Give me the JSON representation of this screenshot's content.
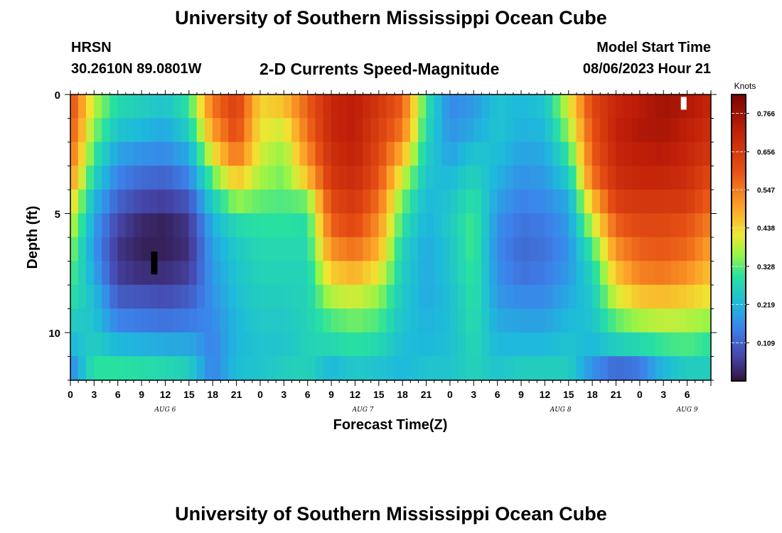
{
  "page": {
    "title": "University of Southern Mississippi Ocean Cube",
    "footer_title": "University of Southern Mississippi Ocean Cube",
    "station": "HRSN",
    "coords": "30.2610N  89.0801W",
    "subtitle": "2-D Currents Speed-Magnitude",
    "model_start_label": "Model Start Time",
    "model_start_value": "08/06/2023 Hour 21"
  },
  "chart_data": {
    "type": "heatmap",
    "title": "2-D Currents Speed-Magnitude",
    "xlabel": "Forecast Time(Z)",
    "ylabel": "Depth (ft)",
    "colorbar_label": "Knots",
    "colorbar_ticks": [
      "0.766",
      "0.656",
      "0.547",
      "0.438",
      "0.328",
      "0.219",
      "0.109"
    ],
    "colorbar_tick_values": [
      0.766,
      0.656,
      0.547,
      0.438,
      0.328,
      0.219,
      0.109
    ],
    "color_range": [
      0.0,
      0.82
    ],
    "x_range_hours": [
      0,
      81
    ],
    "x_tick_labels": [
      "0",
      "3",
      "6",
      "9",
      "12",
      "15",
      "18",
      "21",
      "0",
      "3",
      "6",
      "9",
      "12",
      "15",
      "18",
      "21",
      "0",
      "3",
      "6",
      "9",
      "12",
      "15",
      "18",
      "21",
      "0",
      "3",
      "6"
    ],
    "date_labels": [
      {
        "text": "AUG 6",
        "hour": 12
      },
      {
        "text": "AUG 7",
        "hour": 37
      },
      {
        "text": "AUG 8",
        "hour": 62
      },
      {
        "text": "AUG 9",
        "hour": 78
      }
    ],
    "y_range_ft": [
      0,
      12
    ],
    "y_tick_labels": [
      "0",
      "5",
      "10"
    ],
    "y_tick_values": [
      0,
      5,
      10
    ],
    "depth_levels_ft": [
      0.5,
      1.5,
      2.5,
      3.5,
      4.5,
      5.5,
      6.5,
      7.5,
      8.5,
      9.5,
      10.5,
      11.5
    ],
    "keyframes": [
      {
        "hour": 0,
        "speeds": [
          0.62,
          0.6,
          0.57,
          0.52,
          0.45,
          0.4,
          0.36,
          0.33,
          0.3,
          0.26,
          0.22,
          0.15
        ]
      },
      {
        "hour": 3,
        "speeds": [
          0.38,
          0.35,
          0.31,
          0.27,
          0.22,
          0.19,
          0.18,
          0.2,
          0.23,
          0.24,
          0.26,
          0.3
        ]
      },
      {
        "hour": 6,
        "speeds": [
          0.28,
          0.24,
          0.19,
          0.15,
          0.11,
          0.07,
          0.05,
          0.06,
          0.1,
          0.15,
          0.22,
          0.3
        ]
      },
      {
        "hour": 9,
        "speeds": [
          0.26,
          0.22,
          0.17,
          0.12,
          0.07,
          0.03,
          0.02,
          0.04,
          0.09,
          0.14,
          0.21,
          0.29
        ]
      },
      {
        "hour": 12,
        "speeds": [
          0.24,
          0.2,
          0.16,
          0.11,
          0.06,
          0.02,
          0.02,
          0.04,
          0.08,
          0.13,
          0.2,
          0.28
        ]
      },
      {
        "hour": 15,
        "speeds": [
          0.3,
          0.26,
          0.2,
          0.15,
          0.09,
          0.05,
          0.04,
          0.06,
          0.1,
          0.14,
          0.2,
          0.26
        ]
      },
      {
        "hour": 18,
        "speeds": [
          0.55,
          0.5,
          0.42,
          0.33,
          0.26,
          0.21,
          0.19,
          0.18,
          0.17,
          0.16,
          0.15,
          0.15
        ]
      },
      {
        "hour": 21,
        "speeds": [
          0.64,
          0.62,
          0.56,
          0.46,
          0.36,
          0.28,
          0.25,
          0.24,
          0.23,
          0.22,
          0.22,
          0.23
        ]
      },
      {
        "hour": 24,
        "speeds": [
          0.44,
          0.42,
          0.4,
          0.37,
          0.33,
          0.3,
          0.28,
          0.27,
          0.26,
          0.25,
          0.24,
          0.24
        ]
      },
      {
        "hour": 27,
        "speeds": [
          0.46,
          0.4,
          0.36,
          0.34,
          0.32,
          0.3,
          0.28,
          0.27,
          0.26,
          0.25,
          0.24,
          0.26
        ]
      },
      {
        "hour": 30,
        "speeds": [
          0.58,
          0.56,
          0.52,
          0.46,
          0.34,
          0.29,
          0.28,
          0.27,
          0.27,
          0.27,
          0.27,
          0.27
        ]
      },
      {
        "hour": 33,
        "speeds": [
          0.7,
          0.7,
          0.68,
          0.66,
          0.62,
          0.58,
          0.52,
          0.45,
          0.38,
          0.32,
          0.28,
          0.22
        ]
      },
      {
        "hour": 36,
        "speeds": [
          0.72,
          0.72,
          0.71,
          0.69,
          0.66,
          0.62,
          0.56,
          0.48,
          0.4,
          0.34,
          0.3,
          0.25
        ]
      },
      {
        "hour": 39,
        "speeds": [
          0.66,
          0.64,
          0.62,
          0.6,
          0.56,
          0.52,
          0.48,
          0.42,
          0.36,
          0.32,
          0.28,
          0.24
        ]
      },
      {
        "hour": 42,
        "speeds": [
          0.58,
          0.55,
          0.48,
          0.4,
          0.34,
          0.3,
          0.27,
          0.26,
          0.25,
          0.24,
          0.23,
          0.22
        ]
      },
      {
        "hour": 45,
        "speeds": [
          0.3,
          0.28,
          0.26,
          0.24,
          0.22,
          0.21,
          0.2,
          0.2,
          0.2,
          0.21,
          0.22,
          0.24
        ]
      },
      {
        "hour": 48,
        "speeds": [
          0.16,
          0.17,
          0.19,
          0.22,
          0.24,
          0.25,
          0.24,
          0.24,
          0.23,
          0.23,
          0.23,
          0.24
        ]
      },
      {
        "hour": 51,
        "speeds": [
          0.18,
          0.2,
          0.24,
          0.27,
          0.3,
          0.32,
          0.32,
          0.31,
          0.3,
          0.29,
          0.28,
          0.27
        ]
      },
      {
        "hour": 54,
        "speeds": [
          0.24,
          0.24,
          0.23,
          0.21,
          0.19,
          0.17,
          0.16,
          0.17,
          0.18,
          0.2,
          0.22,
          0.24
        ]
      },
      {
        "hour": 57,
        "speeds": [
          0.22,
          0.21,
          0.19,
          0.17,
          0.15,
          0.13,
          0.12,
          0.13,
          0.16,
          0.19,
          0.22,
          0.26
        ]
      },
      {
        "hour": 60,
        "speeds": [
          0.24,
          0.22,
          0.2,
          0.18,
          0.16,
          0.14,
          0.13,
          0.14,
          0.16,
          0.19,
          0.22,
          0.26
        ]
      },
      {
        "hour": 63,
        "speeds": [
          0.4,
          0.36,
          0.3,
          0.25,
          0.2,
          0.18,
          0.17,
          0.18,
          0.2,
          0.22,
          0.24,
          0.26
        ]
      },
      {
        "hour": 66,
        "speeds": [
          0.62,
          0.6,
          0.58,
          0.55,
          0.46,
          0.38,
          0.31,
          0.27,
          0.25,
          0.24,
          0.22,
          0.17
        ]
      },
      {
        "hour": 69,
        "speeds": [
          0.7,
          0.71,
          0.7,
          0.68,
          0.64,
          0.58,
          0.52,
          0.46,
          0.4,
          0.33,
          0.26,
          0.12
        ]
      },
      {
        "hour": 72,
        "speeds": [
          0.73,
          0.74,
          0.72,
          0.7,
          0.66,
          0.62,
          0.58,
          0.54,
          0.46,
          0.37,
          0.28,
          0.14
        ]
      },
      {
        "hour": 75,
        "speeds": [
          0.76,
          0.75,
          0.73,
          0.7,
          0.66,
          0.62,
          0.59,
          0.55,
          0.47,
          0.39,
          0.31,
          0.22
        ]
      },
      {
        "hour": 78,
        "speeds": [
          0.74,
          0.72,
          0.7,
          0.68,
          0.65,
          0.6,
          0.57,
          0.52,
          0.45,
          0.38,
          0.32,
          0.26
        ]
      },
      {
        "hour": 81,
        "speeds": [
          0.7,
          0.68,
          0.66,
          0.62,
          0.58,
          0.54,
          0.5,
          0.46,
          0.42,
          0.36,
          0.3,
          0.26
        ]
      }
    ]
  }
}
